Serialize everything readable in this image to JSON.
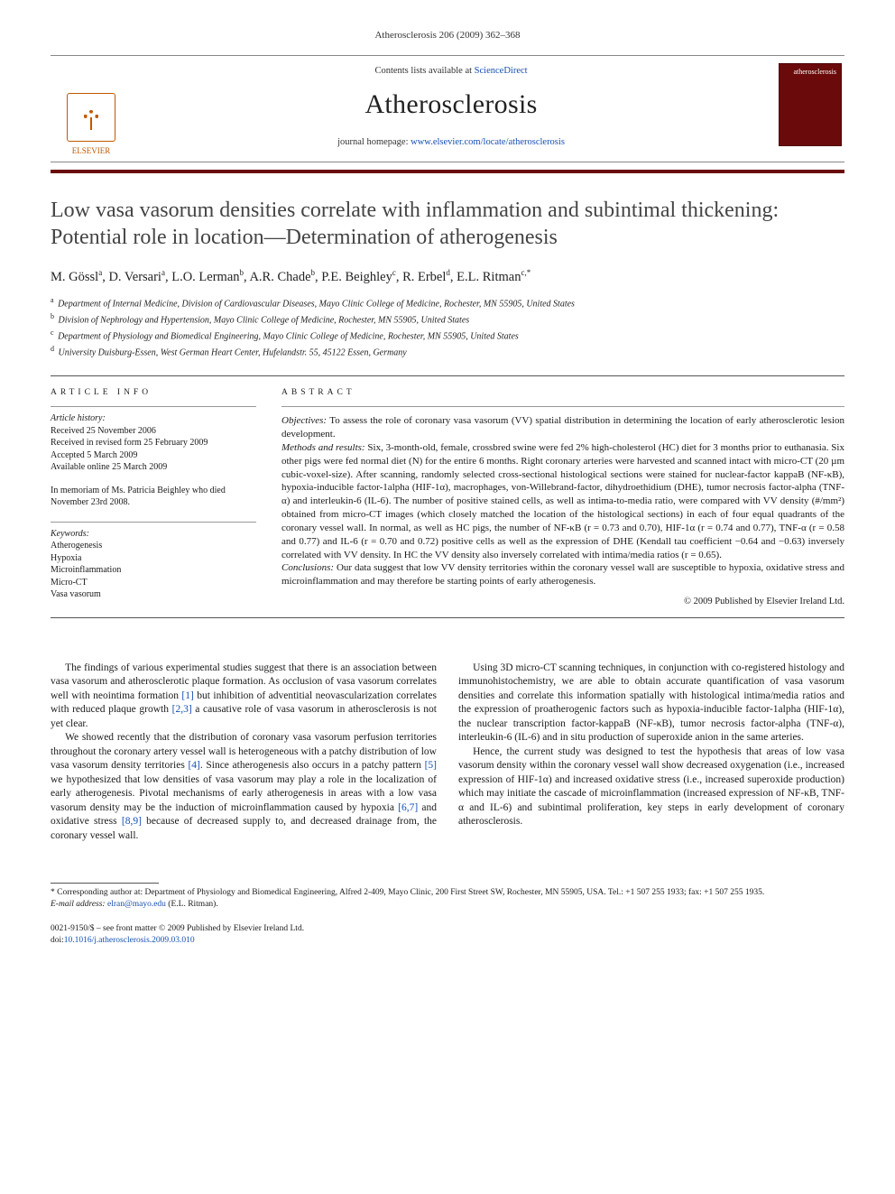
{
  "running_head": "Atherosclerosis 206 (2009) 362–368",
  "masthead": {
    "publisher": "ELSEVIER",
    "contents_line_pre": "Contents lists available at ",
    "contents_link": "ScienceDirect",
    "journal": "Atherosclerosis",
    "homepage_pre": "journal homepage: ",
    "homepage_link": "www.elsevier.com/locate/atherosclerosis",
    "cover_label": "atherosclerosis"
  },
  "title": "Low vasa vasorum densities correlate with inflammation and subintimal thickening: Potential role in location—Determination of atherogenesis",
  "authors_html": "M. Gössl<sup>a</sup>, D. Versari<sup>a</sup>, L.O. Lerman<sup>b</sup>, A.R. Chade<sup>b</sup>, P.E. Beighley<sup>c</sup>, R. Erbel<sup>d</sup>, E.L. Ritman<sup>c,*</sup>",
  "affiliations": [
    "Department of Internal Medicine, Division of Cardiovascular Diseases, Mayo Clinic College of Medicine, Rochester, MN 55905, United States",
    "Division of Nephrology and Hypertension, Mayo Clinic College of Medicine, Rochester, MN 55905, United States",
    "Department of Physiology and Biomedical Engineering, Mayo Clinic College of Medicine, Rochester, MN 55905, United States",
    "University Duisburg-Essen, West German Heart Center, Hufelandstr. 55, 45122 Essen, Germany"
  ],
  "aff_markers": [
    "a",
    "b",
    "c",
    "d"
  ],
  "info_label": "ARTICLE INFO",
  "abstract_label": "ABSTRACT",
  "history": {
    "hdr": "Article history:",
    "lines": [
      "Received 25 November 2006",
      "Received in revised form 25 February 2009",
      "Accepted 5 March 2009",
      "Available online 25 March 2009"
    ]
  },
  "memoriam": "In memoriam of Ms. Patricia Beighley who died November 23rd 2008.",
  "keywords": {
    "hdr": "Keywords:",
    "items": [
      "Atherogenesis",
      "Hypoxia",
      "Microinflammation",
      "Micro-CT",
      "Vasa vasorum"
    ]
  },
  "abstract": {
    "objectives_label": "Objectives:",
    "objectives": " To assess the role of coronary vasa vasorum (VV) spatial distribution in determining the location of early atherosclerotic lesion development.",
    "methods_label": "Methods and results:",
    "methods": " Six, 3-month-old, female, crossbred swine were fed 2% high-cholesterol (HC) diet for 3 months prior to euthanasia. Six other pigs were fed normal diet (N) for the entire 6 months. Right coronary arteries were harvested and scanned intact with micro-CT (20 µm cubic-voxel-size). After scanning, randomly selected cross-sectional histological sections were stained for nuclear-factor kappaB (NF-κB), hypoxia-inducible factor-1alpha (HIF-1α), macrophages, von-Willebrand-factor, dihydroethidium (DHE), tumor necrosis factor-alpha (TNF-α) and interleukin-6 (IL-6). The number of positive stained cells, as well as intima-to-media ratio, were compared with VV density (#/mm²) obtained from micro-CT images (which closely matched the location of the histological sections) in each of four equal quadrants of the coronary vessel wall. In normal, as well as HC pigs, the number of NF-κB (r = 0.73 and 0.70), HIF-1α (r = 0.74 and 0.77), TNF-α (r = 0.58 and 0.77) and IL-6 (r = 0.70 and 0.72) positive cells as well as the expression of DHE (Kendall tau coefficient −0.64 and −0.63) inversely correlated with VV density. In HC the VV density also inversely correlated with intima/media ratios (r = 0.65).",
    "conclusions_label": "Conclusions:",
    "conclusions": " Our data suggest that low VV density territories within the coronary vessel wall are susceptible to hypoxia, oxidative stress and microinflammation and may therefore be starting points of early atherogenesis.",
    "copyright": "© 2009 Published by Elsevier Ireland Ltd."
  },
  "body": {
    "p1_a": "The findings of various experimental studies suggest that there is an association between vasa vasorum and atherosclerotic plaque formation. As occlusion of vasa vasorum correlates well with neointima formation ",
    "r1": "[1]",
    "p1_b": " but inhibition of adventitial neovascularization correlates with reduced plaque growth ",
    "r23": "[2,3]",
    "p1_c": " a causative role of vasa vasorum in atherosclerosis is not yet clear.",
    "p2_a": "We showed recently that the distribution of coronary vasa vasorum perfusion territories throughout the coronary artery vessel wall is heterogeneous with a patchy distribution of low vasa vasorum density territories ",
    "r4": "[4]",
    "p2_b": ". Since atherogenesis also occurs in a patchy pattern ",
    "r5": "[5]",
    "p2_c": " we hypothesized that low densities of vasa vasorum may play a role in the localization of early atherogenesis. Pivotal mechanisms of early atherogenesis in areas with a low vasa vasorum density may be the induction of microinflammation caused by hypoxia ",
    "r67": "[6,7]",
    "p2_d": " and oxidative stress ",
    "r89": "[8,9]",
    "p2_e": " because of decreased supply to, and decreased drainage from, the coronary vessel wall.",
    "p3": "Using 3D micro-CT scanning techniques, in conjunction with co-registered histology and immunohistochemistry, we are able to obtain accurate quantification of vasa vasorum densities and correlate this information spatially with histological intima/media ratios and the expression of proatherogenic factors such as hypoxia-inducible factor-1alpha (HIF-1α), the nuclear transcription factor-kappaB (NF-κB), tumor necrosis factor-alpha (TNF-α), interleukin-6 (IL-6) and in situ production of superoxide anion in the same arteries.",
    "p4": "Hence, the current study was designed to test the hypothesis that areas of low vasa vasorum density within the coronary vessel wall show decreased oxygenation (i.e., increased expression of HIF-1α) and increased oxidative stress (i.e., increased superoxide production) which may initiate the cascade of microinflammation (increased expression of NF-κB, TNF-α and IL-6) and subintimal proliferation, key steps in early development of coronary atherosclerosis."
  },
  "footnotes": {
    "corr": "* Corresponding author at: Department of Physiology and Biomedical Engineering, Alfred 2-409, Mayo Clinic, 200 First Street SW, Rochester, MN 55905, USA. Tel.: +1 507 255 1933; fax: +1 507 255 1935.",
    "email_label": "E-mail address: ",
    "email": "elran@mayo.edu",
    "email_person": " (E.L. Ritman)."
  },
  "footer": {
    "line1": "0021-9150/$ – see front matter © 2009 Published by Elsevier Ireland Ltd.",
    "doi_label": "doi:",
    "doi": "10.1016/j.atherosclerosis.2009.03.010"
  },
  "colors": {
    "link": "#1650b3",
    "publisher": "#c05900",
    "redbar": "#6b0a0a"
  }
}
